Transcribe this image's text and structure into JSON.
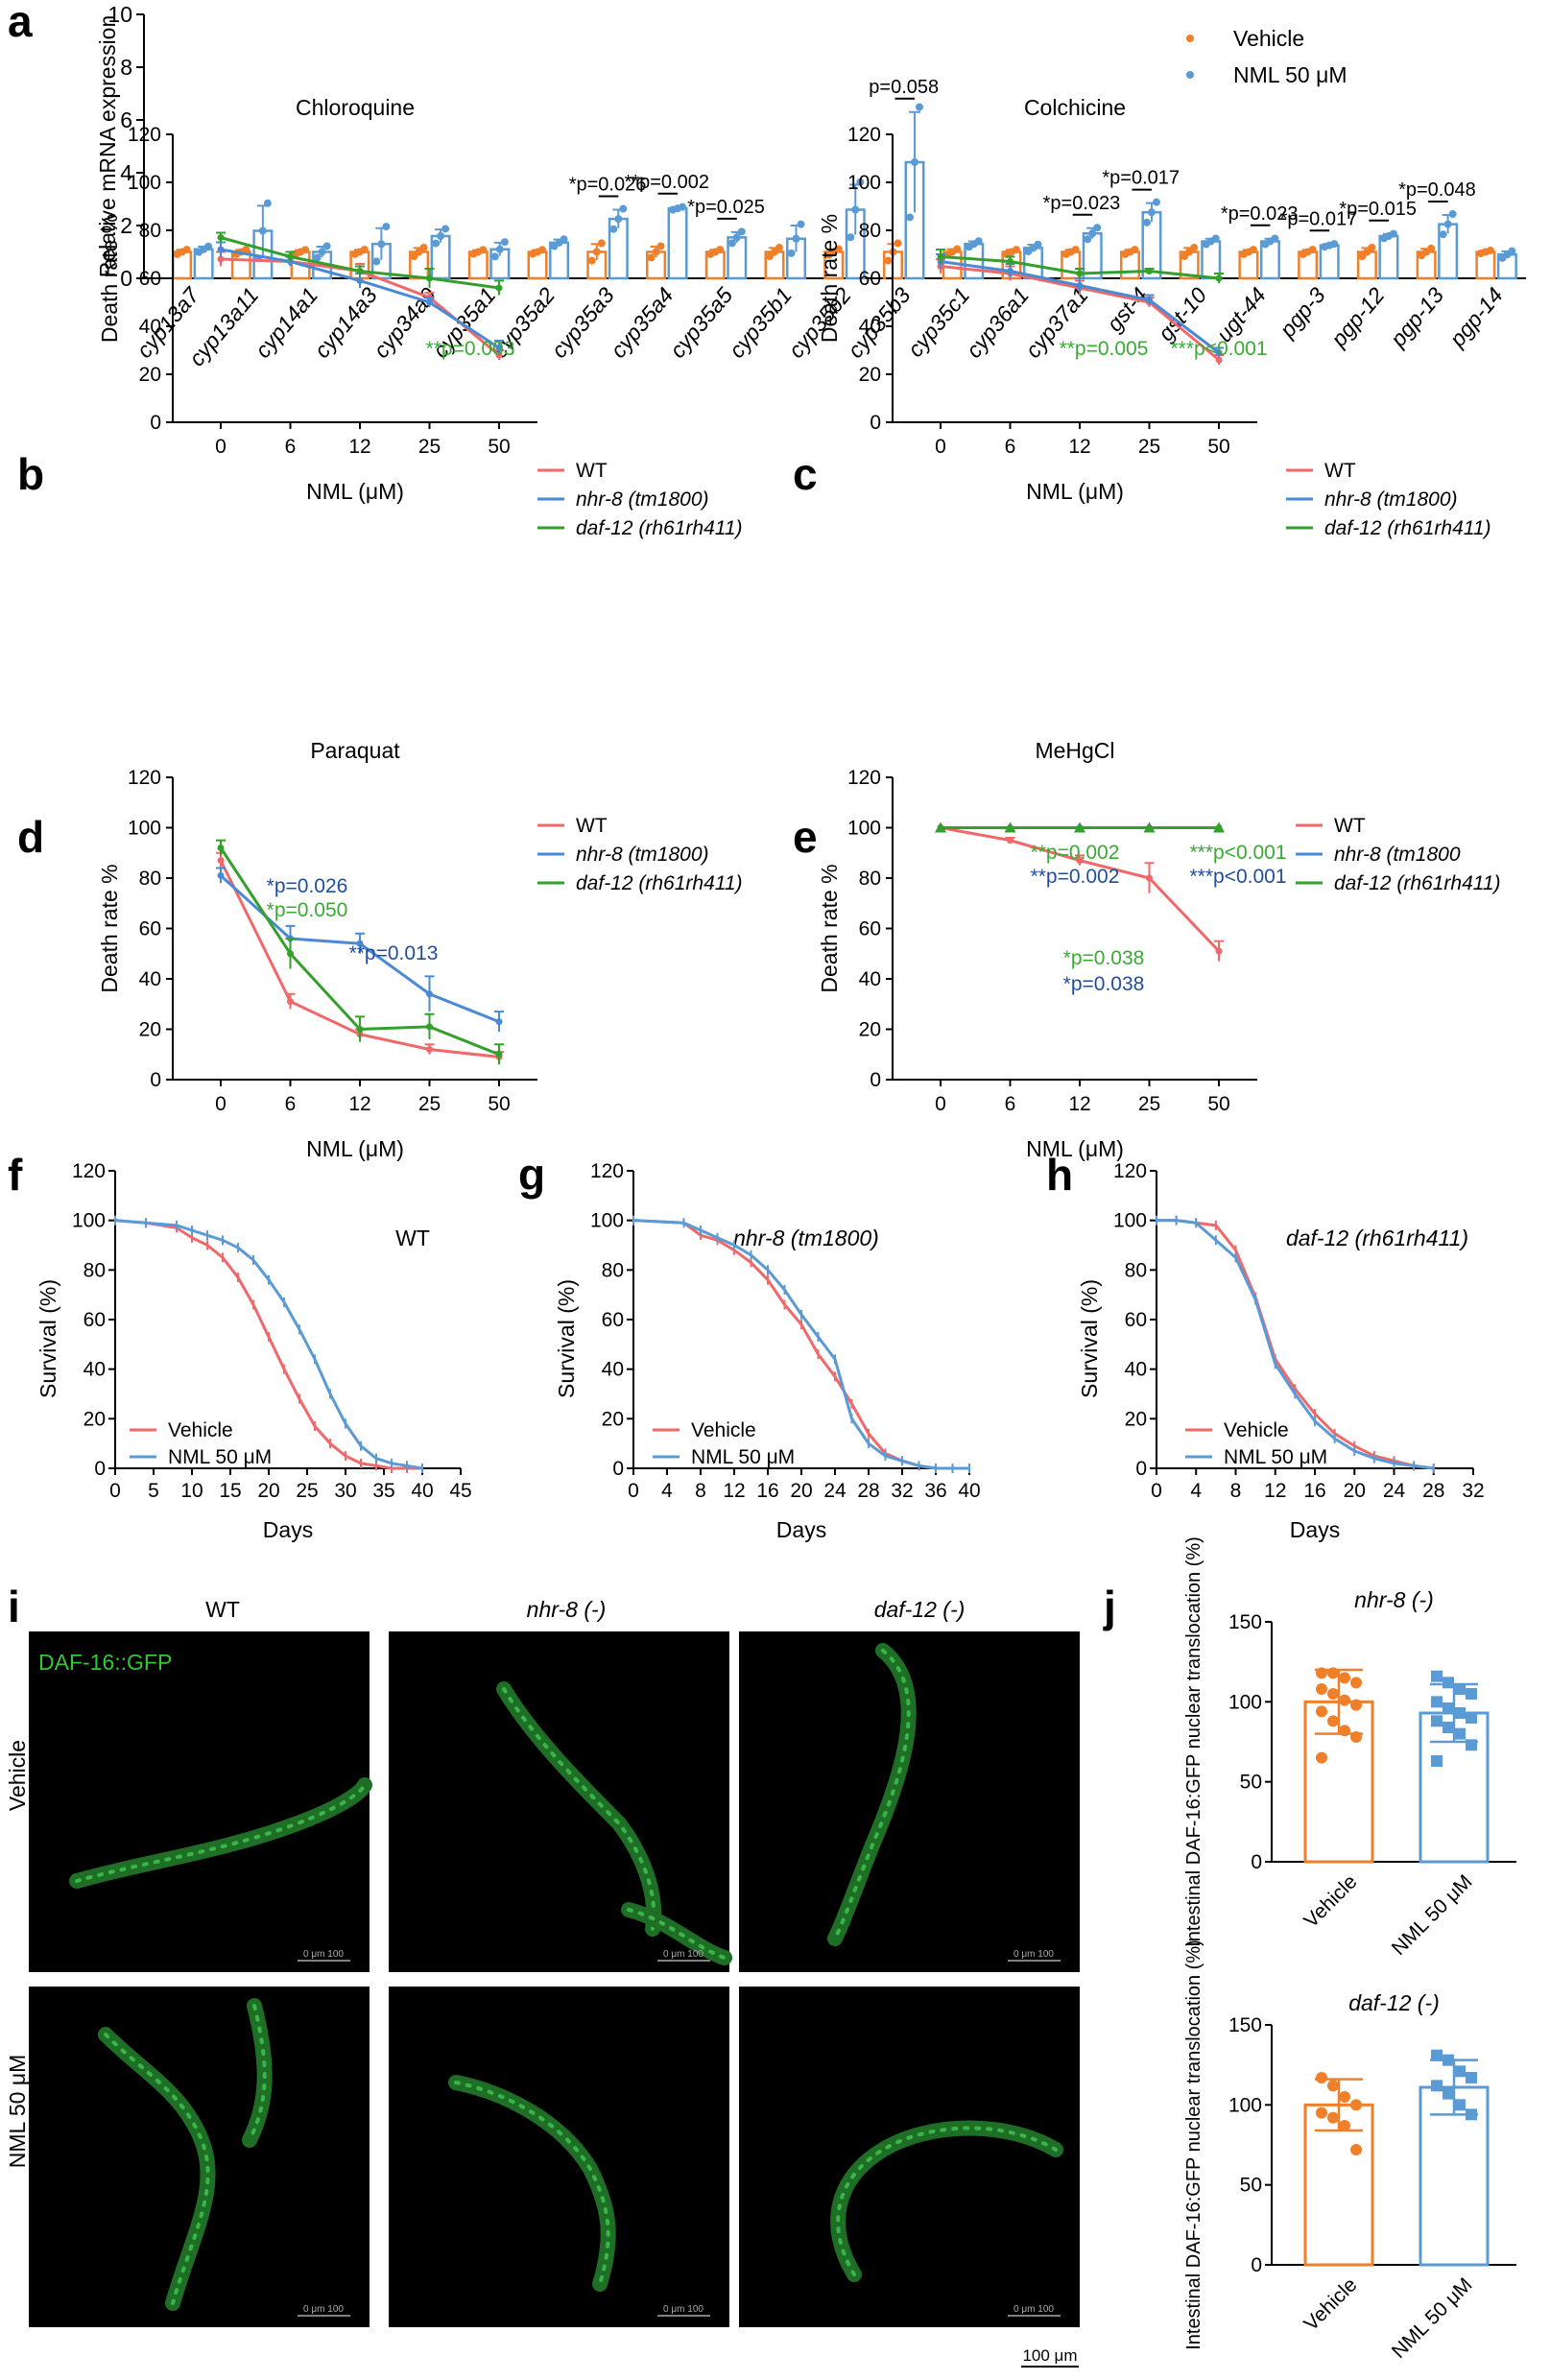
{
  "panels": {
    "a": {
      "label": "a"
    },
    "b": {
      "label": "b"
    },
    "c": {
      "label": "c"
    },
    "d": {
      "label": "d"
    },
    "e": {
      "label": "e"
    },
    "f": {
      "label": "f"
    },
    "g": {
      "label": "g"
    },
    "h": {
      "label": "h"
    },
    "i": {
      "label": "i"
    },
    "j": {
      "label": "j"
    }
  },
  "colors": {
    "wt": "#f0686a",
    "nhr": "#4a8ad4",
    "daf": "#33a02c",
    "vehicle": "#f07f2a",
    "nml": "#5b9bd5",
    "sig_green": "#3aaa35",
    "sig_blue": "#1f4e9e",
    "dark": "#000000"
  },
  "common": {
    "death_ylabel": "Death rate %",
    "nml_xlabel": "NML (μM)",
    "legend_wt": "WT",
    "legend_nhr": "nhr-8 (tm1800)",
    "legend_nhr_e": "nhr-8 (tm1800",
    "legend_daf": "daf-12 (rh61rh411)",
    "surv_ylabel": "Survival (%)",
    "days_xlabel": "Days",
    "legend_vehicle": "Vehicle",
    "legend_nml": "NML 50 μM"
  },
  "micro": {
    "col_wt": "WT",
    "col_nhr": "nhr-8 (-)",
    "col_daf": "daf-12 (-)",
    "row_vehicle": "Vehicle",
    "row_nml": "NML 50 μM",
    "gfp_label": "DAF-16::GFP",
    "scale_small": "0 μm 100",
    "scale_main": "100 μm"
  },
  "chart_data": [
    {
      "id": "a",
      "type": "bar",
      "ylabel": "Relative mRNA expression",
      "ylim": [
        0,
        10
      ],
      "yticks": [
        0,
        2,
        4,
        6,
        8,
        10
      ],
      "legend": [
        "Vehicle",
        "NML 50 μM"
      ],
      "categories": [
        "cyp13a7",
        "cyp13a11",
        "cyp14a1",
        "cyp14a3",
        "cyp34a9",
        "cyp35a1",
        "cyp35a2",
        "cyp35a3",
        "cyp35a4",
        "cyp35a5",
        "cyp35b1",
        "cyp35b2",
        "cyp35b3",
        "cyp35c1",
        "cyp36a1",
        "cyp37a1",
        "gst-4",
        "gst-10",
        "ugt-44",
        "pgp-3",
        "pgp-12",
        "pgp-13",
        "pgp-14"
      ],
      "series": [
        {
          "name": "Vehicle",
          "values": [
            1,
            1,
            1,
            1,
            1,
            1,
            1,
            1,
            1,
            1,
            1,
            1,
            1,
            1,
            1,
            1,
            1,
            1,
            1,
            1,
            1,
            1,
            1
          ],
          "errors": [
            0.08,
            0.08,
            0.07,
            0.08,
            0.15,
            0.07,
            0.07,
            0.3,
            0.2,
            0.08,
            0.15,
            0.1,
            0.3,
            0.1,
            0.08,
            0.08,
            0.08,
            0.15,
            0.08,
            0.08,
            0.15,
            0.12,
            0.05
          ]
        },
        {
          "name": "NML 50 μM",
          "values": [
            1.1,
            1.8,
            1.0,
            1.3,
            1.6,
            1.1,
            1.35,
            2.25,
            2.65,
            1.55,
            1.5,
            2.6,
            4.4,
            1.3,
            1.15,
            1.7,
            2.5,
            1.4,
            1.4,
            1.25,
            1.6,
            2.05,
            0.9
          ],
          "errors": [
            0.1,
            0.95,
            0.2,
            0.6,
            0.25,
            0.25,
            0.12,
            0.35,
            0.05,
            0.2,
            0.5,
            0.95,
            1.9,
            0.1,
            0.12,
            0.2,
            0.35,
            0.1,
            0.1,
            0.05,
            0.08,
            0.35,
            0.12
          ]
        }
      ],
      "annotations": [
        {
          "text": "*p=0.026",
          "category": "cyp35a3"
        },
        {
          "text": "**p=0.002",
          "category": "cyp35a4"
        },
        {
          "text": "*p=0.025",
          "category": "cyp35a5"
        },
        {
          "text": "p=0.058",
          "category": "cyp35b3"
        },
        {
          "text": "*p=0.023",
          "category": "cyp37a1"
        },
        {
          "text": "*p=0.017",
          "category": "gst-4"
        },
        {
          "text": "*p=0.023",
          "category": "ugt-44"
        },
        {
          "text": "*p=0.017",
          "category": "pgp-3"
        },
        {
          "text": "*p=0.015",
          "category": "pgp-12"
        },
        {
          "text": "*p=0.048",
          "category": "pgp-13"
        }
      ]
    },
    {
      "id": "b",
      "type": "line",
      "title": "Chloroquine",
      "xlabel": "NML (μM)",
      "ylabel": "Death rate %",
      "x": [
        0,
        6,
        12,
        25,
        50
      ],
      "ylim": [
        0,
        120
      ],
      "series": [
        {
          "name": "WT",
          "values": [
            68,
            67,
            63,
            52,
            28
          ],
          "errors": [
            3,
            2,
            3,
            2,
            2
          ]
        },
        {
          "name": "nhr-8 (tm1800)",
          "values": [
            72,
            67,
            59,
            50,
            31
          ],
          "errors": [
            3,
            2,
            3,
            2,
            3
          ]
        },
        {
          "name": "daf-12 (rh61rh411)",
          "values": [
            77,
            69,
            63,
            60,
            56
          ],
          "errors": [
            2,
            2,
            2,
            4,
            3
          ]
        }
      ],
      "annotations": [
        {
          "text": "**p=0.003",
          "color": "green"
        }
      ]
    },
    {
      "id": "c",
      "type": "line",
      "title": "Colchicine",
      "xlabel": "NML (μM)",
      "ylabel": "Death rate %",
      "x": [
        0,
        6,
        12,
        25,
        50
      ],
      "ylim": [
        0,
        120
      ],
      "series": [
        {
          "name": "WT",
          "values": [
            65,
            62,
            56,
            50,
            26
          ],
          "errors": [
            3,
            3,
            3,
            2,
            2
          ]
        },
        {
          "name": "nhr-8 (tm1800)",
          "values": [
            67,
            63,
            57,
            51,
            29
          ],
          "errors": [
            3,
            3,
            3,
            2,
            2
          ]
        },
        {
          "name": "daf-12 (rh61rh411)",
          "values": [
            69,
            67,
            62,
            63,
            60
          ],
          "errors": [
            3,
            2,
            2,
            1,
            2
          ]
        }
      ],
      "annotations": [
        {
          "text": "**p=0.005",
          "color": "green"
        },
        {
          "text": "***p<0.001",
          "color": "green"
        }
      ]
    },
    {
      "id": "d",
      "type": "line",
      "title": "Paraquat",
      "xlabel": "NML (μM)",
      "ylabel": "Death rate %",
      "x": [
        0,
        6,
        12,
        25,
        50
      ],
      "ylim": [
        0,
        120
      ],
      "series": [
        {
          "name": "WT",
          "values": [
            87,
            31,
            18,
            12,
            9
          ],
          "errors": [
            3,
            3,
            2,
            2,
            2
          ]
        },
        {
          "name": "nhr-8 (tm1800)",
          "values": [
            81,
            56,
            54,
            34,
            23
          ],
          "errors": [
            3,
            5,
            4,
            7,
            4
          ]
        },
        {
          "name": "daf-12 (rh61rh411)",
          "values": [
            92,
            50,
            20,
            21,
            10
          ],
          "errors": [
            3,
            6,
            5,
            5,
            4
          ]
        }
      ],
      "annotations": [
        {
          "text": "*p=0.026",
          "color": "blue"
        },
        {
          "text": "*p=0.050",
          "color": "green"
        },
        {
          "text": "**p=0.013",
          "color": "blue"
        }
      ]
    },
    {
      "id": "e",
      "type": "line",
      "title": "MeHgCl",
      "xlabel": "NML (μM)",
      "ylabel": "Death rate %",
      "x": [
        0,
        6,
        12,
        25,
        50
      ],
      "ylim": [
        0,
        120
      ],
      "series": [
        {
          "name": "WT",
          "values": [
            100,
            95,
            87,
            80,
            51
          ],
          "errors": [
            0,
            1,
            2,
            6,
            4
          ]
        },
        {
          "name": "nhr-8 (tm1800",
          "values": [
            100,
            100,
            100,
            100,
            100
          ],
          "errors": [
            0,
            0,
            0,
            0,
            0
          ]
        },
        {
          "name": "daf-12 (rh61rh411)",
          "values": [
            100,
            100,
            100,
            100,
            100
          ],
          "errors": [
            0,
            0,
            0,
            0,
            0
          ]
        }
      ],
      "annotations": [
        {
          "text": "**p=0.002",
          "color": "green"
        },
        {
          "text": "**p=0.002",
          "color": "blue"
        },
        {
          "text": "***p<0.001",
          "color": "green"
        },
        {
          "text": "***p<0.001",
          "color": "blue"
        },
        {
          "text": "*p=0.038",
          "color": "green"
        },
        {
          "text": "*p=0.038",
          "color": "blue"
        }
      ]
    },
    {
      "id": "f",
      "type": "line",
      "title": "WT",
      "xlabel": "Days",
      "ylabel": "Survival (%)",
      "xlim": [
        0,
        45
      ],
      "xticks": [
        0,
        5,
        10,
        15,
        20,
        25,
        30,
        35,
        40,
        45
      ],
      "ylim": [
        0,
        120
      ],
      "series": [
        {
          "name": "Vehicle",
          "x": [
            0,
            4,
            8,
            10,
            12,
            14,
            16,
            18,
            20,
            22,
            24,
            26,
            28,
            30,
            32,
            34,
            36,
            38,
            40
          ],
          "values": [
            100,
            99,
            97,
            93,
            90,
            85,
            77,
            66,
            53,
            40,
            28,
            17,
            10,
            5,
            2,
            1,
            0,
            0,
            0
          ]
        },
        {
          "name": "NML 50 μM",
          "x": [
            0,
            4,
            8,
            10,
            12,
            14,
            16,
            18,
            20,
            22,
            24,
            26,
            28,
            30,
            32,
            34,
            36,
            38,
            40
          ],
          "values": [
            100,
            99,
            98,
            96,
            94,
            92,
            89,
            84,
            76,
            67,
            56,
            44,
            30,
            18,
            9,
            4,
            2,
            1,
            0
          ]
        }
      ]
    },
    {
      "id": "g",
      "type": "line",
      "title": "nhr-8 (tm1800)",
      "xlabel": "Days",
      "ylabel": "Survival (%)",
      "xlim": [
        0,
        40
      ],
      "xticks": [
        0,
        4,
        8,
        12,
        16,
        20,
        24,
        28,
        32,
        36,
        40
      ],
      "ylim": [
        0,
        120
      ],
      "series": [
        {
          "name": "Vehicle",
          "x": [
            0,
            6,
            8,
            10,
            12,
            14,
            16,
            18,
            20,
            22,
            24,
            26,
            28,
            30,
            32,
            34,
            36,
            38,
            40
          ],
          "values": [
            100,
            99,
            94,
            92,
            88,
            83,
            76,
            66,
            58,
            46,
            37,
            26,
            14,
            6,
            3,
            1,
            0,
            0,
            0
          ]
        },
        {
          "name": "NML 50 μM",
          "x": [
            0,
            6,
            8,
            10,
            12,
            14,
            16,
            18,
            20,
            22,
            24,
            26,
            28,
            30,
            32,
            34,
            36,
            38,
            40
          ],
          "values": [
            100,
            99,
            96,
            93,
            90,
            86,
            80,
            72,
            62,
            53,
            44,
            20,
            10,
            5,
            3,
            1,
            0,
            0,
            0
          ]
        }
      ]
    },
    {
      "id": "h",
      "type": "line",
      "title": "daf-12 (rh61rh411)",
      "xlabel": "Days",
      "ylabel": "Survival (%)",
      "xlim": [
        0,
        32
      ],
      "xticks": [
        0,
        4,
        8,
        12,
        16,
        20,
        24,
        28,
        32
      ],
      "ylim": [
        0,
        120
      ],
      "series": [
        {
          "name": "Vehicle",
          "x": [
            0,
            2,
            4,
            6,
            8,
            10,
            12,
            14,
            16,
            18,
            20,
            22,
            24,
            26,
            28
          ],
          "values": [
            100,
            100,
            99,
            98,
            88,
            69,
            44,
            32,
            22,
            14,
            9,
            5,
            3,
            1,
            0
          ]
        },
        {
          "name": "NML 50 μM",
          "x": [
            0,
            2,
            4,
            6,
            8,
            10,
            12,
            14,
            16,
            18,
            20,
            22,
            24,
            26,
            28
          ],
          "values": [
            100,
            100,
            99,
            92,
            85,
            68,
            42,
            30,
            19,
            12,
            7,
            4,
            2,
            1,
            0
          ]
        }
      ]
    },
    {
      "id": "j1",
      "type": "bar",
      "title": "nhr-8 (-)",
      "ylabel": "Intestinal DAF-16:GFP nuclear translocation (%)",
      "ylim": [
        0,
        150
      ],
      "yticks": [
        0,
        50,
        100,
        150
      ],
      "categories": [
        "Vehicle",
        "NML 50 μM"
      ],
      "values": [
        100,
        93
      ],
      "errors": [
        20,
        18
      ],
      "points": [
        [
          118,
          118,
          115,
          112,
          108,
          105,
          101,
          98,
          94,
          88,
          82,
          78,
          65
        ],
        [
          116,
          112,
          108,
          105,
          100,
          96,
          93,
          90,
          88,
          84,
          80,
          73,
          63
        ]
      ]
    },
    {
      "id": "j2",
      "type": "bar",
      "title": "daf-12 (-)",
      "ylabel": "Intestinal DAF-16:GFP nuclear translocation (%)",
      "ylim": [
        0,
        150
      ],
      "yticks": [
        0,
        50,
        100,
        150
      ],
      "categories": [
        "Vehicle",
        "NML 50 μM"
      ],
      "values": [
        100,
        111
      ],
      "errors": [
        16,
        17
      ],
      "points": [
        [
          117,
          112,
          105,
          100,
          95,
          92,
          87,
          72
        ],
        [
          131,
          128,
          121,
          117,
          112,
          107,
          100,
          94
        ]
      ]
    }
  ]
}
